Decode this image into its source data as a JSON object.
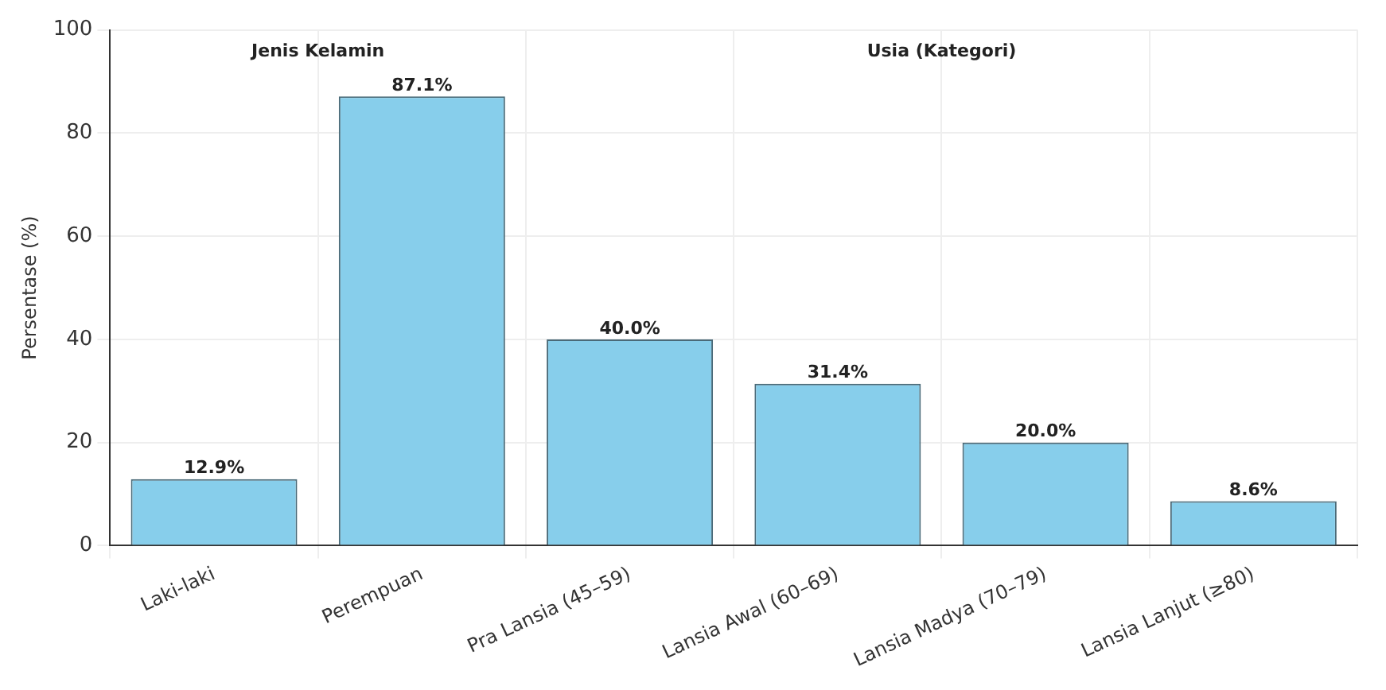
{
  "chart_data": {
    "type": "bar",
    "ylabel": "Persentase (%)",
    "categories": [
      "Laki-laki",
      "Perempuan",
      "Pra Lansia (45–59)",
      "Lansia Awal (60–69)",
      "Lansia Madya (70–79)",
      "Lansia Lanjut (≥80)"
    ],
    "values": [
      12.9,
      87.1,
      40.0,
      31.4,
      20.0,
      8.6
    ],
    "value_labels": [
      "12.9%",
      "87.1%",
      "40.0%",
      "31.4%",
      "20.0%",
      "8.6%"
    ],
    "color": "#87ceeb",
    "ylim": [
      0,
      100
    ],
    "yticks": [
      0,
      20,
      40,
      60,
      80,
      100
    ],
    "grid": true,
    "legend": false,
    "annotations": [
      "Jenis Kelamin",
      "Usia (Kategori)"
    ]
  }
}
